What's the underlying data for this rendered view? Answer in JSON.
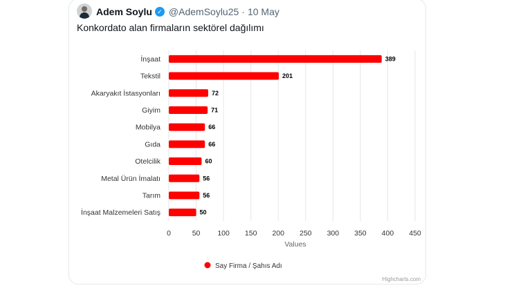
{
  "tweet": {
    "author": "Adem Soylu",
    "handle": "@AdemSoylu25",
    "separator": "·",
    "date": "10 May",
    "text": "Konkordato alan firmaların sektörel dağılımı"
  },
  "chart_data": {
    "type": "bar",
    "orientation": "horizontal",
    "categories": [
      "İnşaat",
      "Tekstil",
      "Akaryakıt İstasyonları",
      "Giyim",
      "Mobilya",
      "Gıda",
      "Otelcilik",
      "Metal Ürün İmalatı",
      "Tarım",
      "İnşaat Malzemeleri Satış"
    ],
    "series": [
      {
        "name": "Say Firma / Şahıs Adı",
        "values": [
          389,
          201,
          72,
          71,
          66,
          66,
          60,
          56,
          56,
          50
        ]
      }
    ],
    "xlabel": "Values",
    "xlim": [
      0,
      450
    ],
    "xticks": [
      0,
      50,
      100,
      150,
      200,
      250,
      300,
      350,
      400,
      450
    ],
    "grid": "vertical",
    "legend": "bottom-center",
    "bar_color": "#ff0000",
    "credits": "Highcharts.com"
  }
}
